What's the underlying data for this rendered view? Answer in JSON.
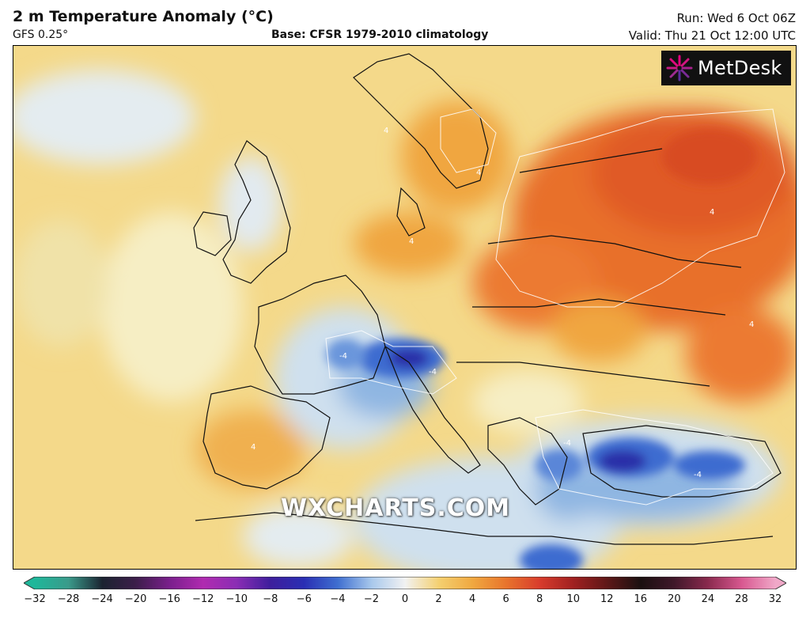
{
  "header": {
    "title": "2 m Temperature Anomaly (°C)",
    "model": "GFS 0.25°",
    "base": "Base: CFSR 1979-2010 climatology",
    "run": "Run: Wed 6 Oct 06Z",
    "valid": "Valid: Thu 21 Oct 12:00 UTC"
  },
  "logo": {
    "text": "MetDesk"
  },
  "watermark": "WXCHARTS.COM",
  "colorbar": {
    "ticks": [
      "−32",
      "−28",
      "−24",
      "−20",
      "−16",
      "−12",
      "−10",
      "−8",
      "−6",
      "−4",
      "−2",
      "0",
      "2",
      "4",
      "6",
      "8",
      "10",
      "12",
      "16",
      "20",
      "24",
      "28",
      "32"
    ],
    "colors": [
      "#1fb79a",
      "#3a9a8a",
      "#1b2330",
      "#3c1e4a",
      "#7a1f8c",
      "#b02bb0",
      "#8a2db4",
      "#3d1e9c",
      "#2a2fb4",
      "#3f6fd0",
      "#a8c8ec",
      "#f2f2f2",
      "#f4d070",
      "#f0a840",
      "#e8742c",
      "#d83c2c",
      "#a02020",
      "#5e1818",
      "#1a1010",
      "#40182a",
      "#8a2a4e",
      "#d85890",
      "#f0a8c8"
    ]
  },
  "map": {
    "contour_labels": [
      "4",
      "4",
      "4",
      "4",
      "4",
      "4",
      "-4",
      "-4",
      "-4",
      "-4"
    ],
    "palette": {
      "sea_default": "#f4d98a",
      "warm_orange": "#f0a640",
      "hot_orange": "#ec7a30",
      "hottest": "#e05a26",
      "cool_light": "#cfe0ee",
      "cool_mid": "#8fb6e2",
      "cool_deep": "#3d6cd0",
      "coldest": "#2a2fa8",
      "pale": "#f6eec4"
    }
  }
}
